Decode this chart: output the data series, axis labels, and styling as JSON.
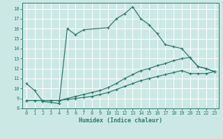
{
  "xlabel": "Humidex (Indice chaleur)",
  "background_color": "#cce8e5",
  "line_color": "#2d7a6e",
  "grid_color": "#ffffff",
  "xlim": [
    -0.5,
    23.5
  ],
  "ylim": [
    8.0,
    18.6
  ],
  "xticks": [
    0,
    1,
    2,
    3,
    4,
    5,
    6,
    7,
    8,
    9,
    10,
    11,
    12,
    13,
    14,
    15,
    16,
    17,
    18,
    19,
    20,
    21,
    22,
    23
  ],
  "yticks": [
    8,
    9,
    10,
    11,
    12,
    13,
    14,
    15,
    16,
    17,
    18
  ],
  "line1_x": [
    0,
    1,
    2,
    3,
    4,
    5,
    6,
    7,
    10,
    11,
    12,
    13,
    14,
    15,
    16,
    17,
    18,
    19,
    20,
    21,
    22,
    23
  ],
  "line1_y": [
    10.5,
    9.8,
    8.7,
    8.6,
    8.5,
    16.0,
    15.4,
    15.9,
    16.1,
    17.0,
    17.5,
    18.2,
    17.0,
    16.4,
    15.5,
    14.4,
    14.2,
    14.0,
    13.1,
    12.2,
    12.0,
    11.7
  ],
  "line2_x": [
    0,
    1,
    2,
    3,
    4,
    5,
    6,
    7,
    8,
    9,
    10,
    11,
    12,
    13,
    14,
    15,
    16,
    17,
    18,
    19,
    20,
    21,
    22,
    23
  ],
  "line2_y": [
    8.8,
    8.8,
    8.8,
    8.8,
    8.8,
    9.0,
    9.2,
    9.4,
    9.6,
    9.8,
    10.1,
    10.5,
    11.0,
    11.4,
    11.8,
    12.0,
    12.3,
    12.5,
    12.8,
    13.0,
    13.1,
    12.2,
    12.0,
    11.7
  ],
  "line3_x": [
    0,
    1,
    2,
    3,
    4,
    5,
    6,
    7,
    8,
    9,
    10,
    11,
    12,
    13,
    14,
    15,
    16,
    17,
    18,
    19,
    20,
    21,
    22,
    23
  ],
  "line3_y": [
    8.8,
    8.8,
    8.8,
    8.8,
    8.8,
    8.9,
    9.0,
    9.1,
    9.2,
    9.4,
    9.6,
    9.9,
    10.2,
    10.5,
    10.8,
    11.0,
    11.2,
    11.4,
    11.6,
    11.8,
    11.5,
    11.5,
    11.5,
    11.7
  ],
  "marker_size": 2.5,
  "line_width": 0.9,
  "tick_fontsize": 5.0,
  "xlabel_fontsize": 6.0
}
